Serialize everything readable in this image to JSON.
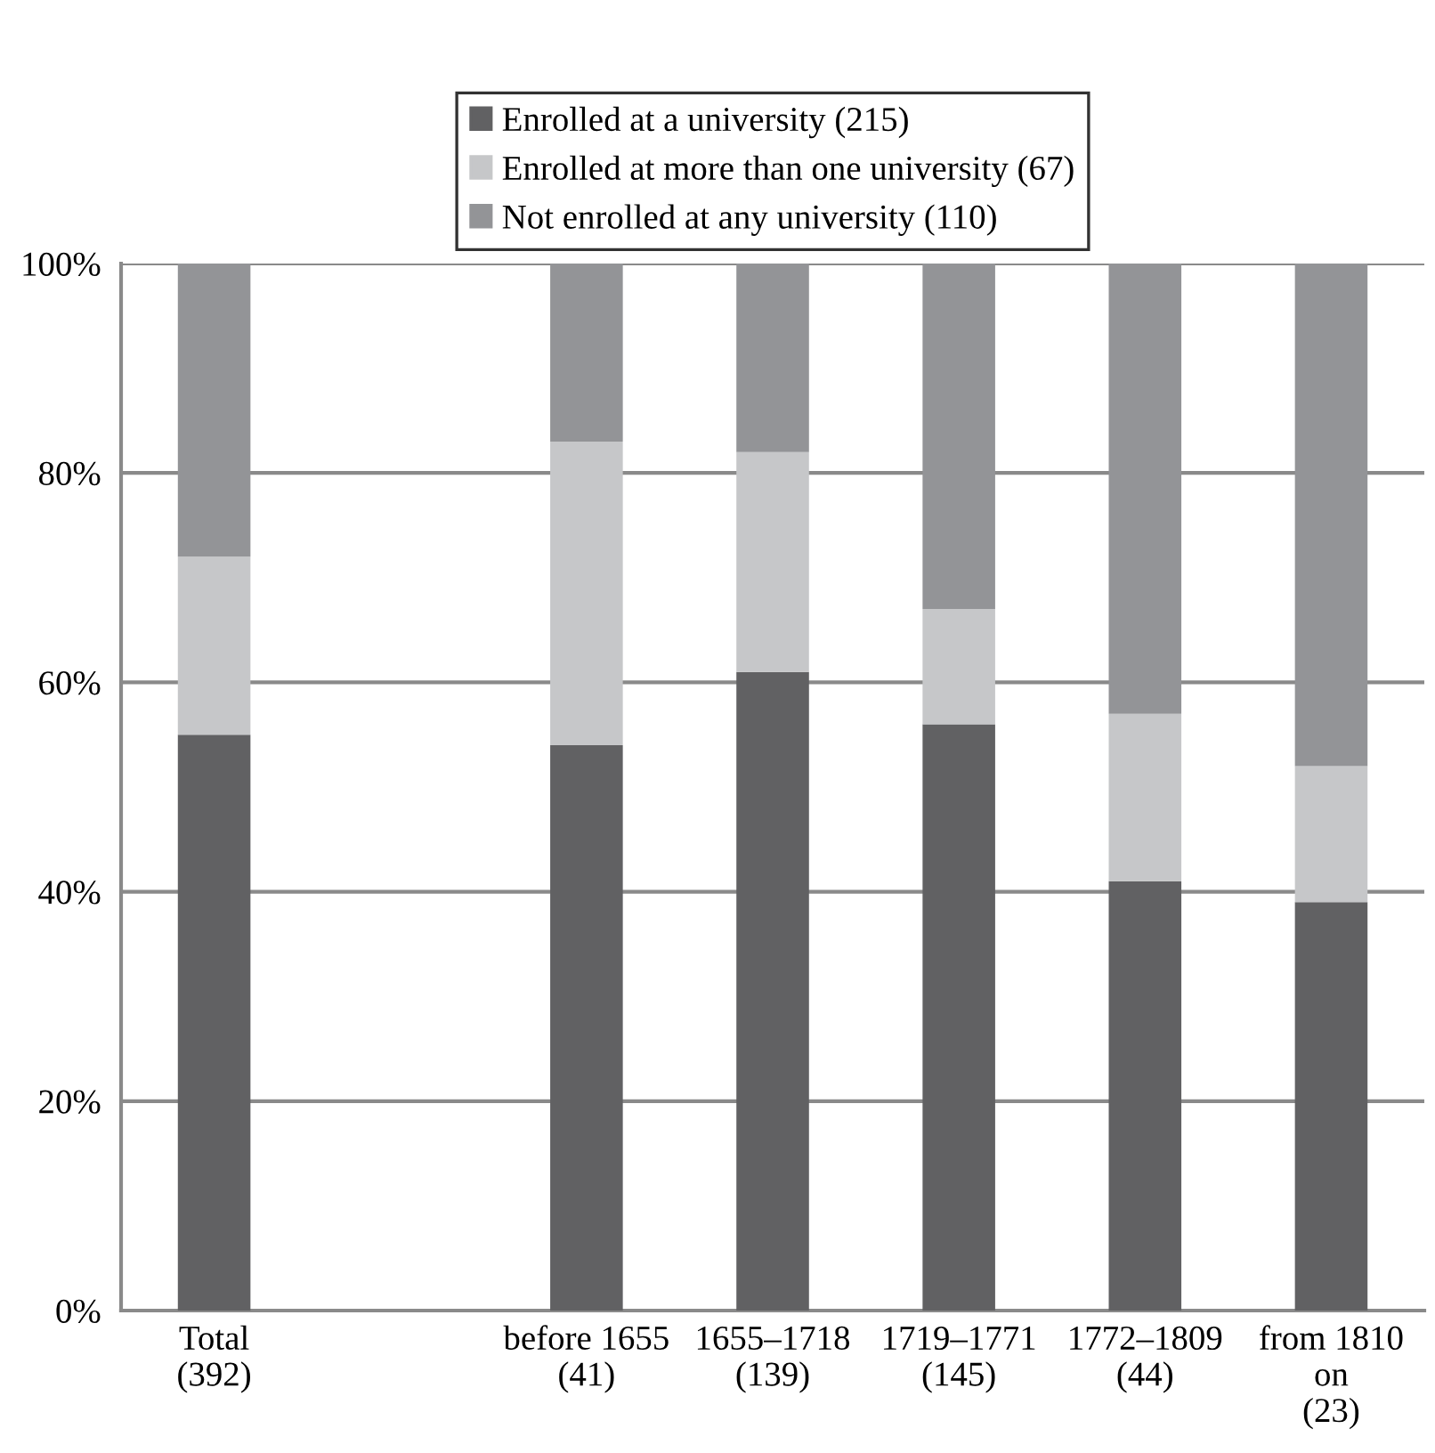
{
  "chart_data": {
    "type": "bar",
    "stacked": true,
    "categories": [
      "Total\n(392)",
      null,
      "before 1655\n(41)",
      "1655–1718\n(139)",
      "1719–1771\n(145)",
      "1772–1809\n(44)",
      "from 1810\non\n(23)"
    ],
    "series": [
      {
        "name": "Enrolled at a university (215)",
        "color": "#616163",
        "values": [
          55,
          null,
          54,
          61,
          56,
          41,
          39
        ]
      },
      {
        "name": "Enrolled at more than one university (67)",
        "color": "#c6c7c9",
        "values": [
          17,
          null,
          29,
          21,
          11,
          16,
          13
        ]
      },
      {
        "name": "Not enrolled at any university (110)",
        "color": "#939497",
        "values": [
          28,
          null,
          17,
          18,
          33,
          43,
          48
        ]
      }
    ],
    "ylim": [
      0,
      100
    ],
    "yticks": [
      {
        "value": 0,
        "label": "0%"
      },
      {
        "value": 20,
        "label": "20%"
      },
      {
        "value": 40,
        "label": "40%"
      },
      {
        "value": 60,
        "label": "60%"
      },
      {
        "value": 80,
        "label": "80%"
      },
      {
        "value": 100,
        "label": "100%"
      }
    ],
    "grid": "y",
    "legend": "top"
  }
}
